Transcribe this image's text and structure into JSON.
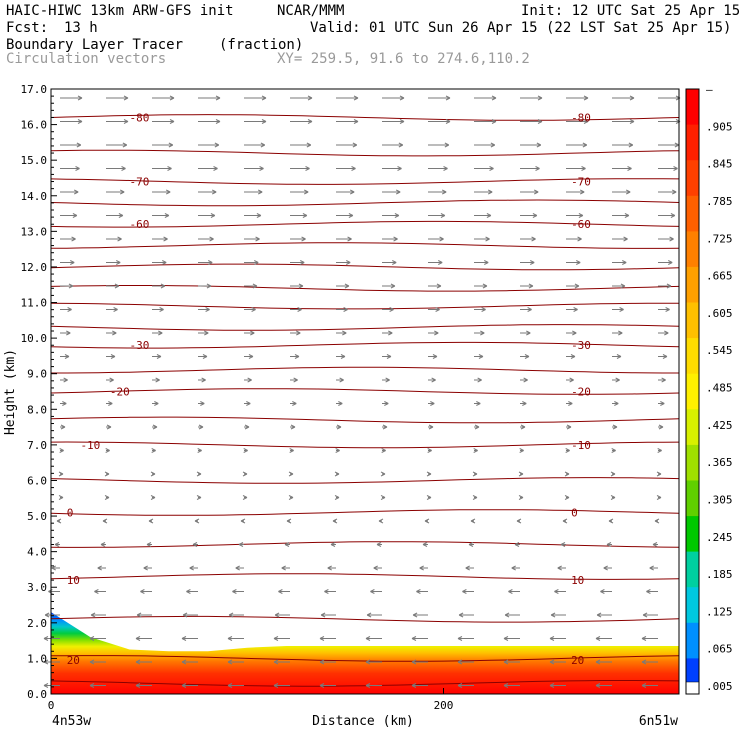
{
  "header": {
    "model": "HAIC-HIWC 13km ARW-GFS init",
    "org": "NCAR/MMM",
    "init": "Init: 12 UTC Sat 25 Apr 15",
    "fcst_label": "Fcst:",
    "fcst_value": "13 h",
    "valid": "Valid: 01 UTC Sun 26 Apr 15 (22 LST Sat 25 Apr 15)",
    "field": "Boundary Layer Tracer",
    "units": "(fraction)",
    "vectors": "Circulation vectors",
    "xy": "XY= 259.5, 91.6 to 274.6,110.2"
  },
  "chart_data": {
    "type": "heatmap",
    "title": "Boundary Layer Tracer",
    "ylabel": "Height (km)",
    "xlabel": "Distance (km)",
    "xlim": [
      0,
      320
    ],
    "ylim": [
      0,
      17
    ],
    "y_ticks": [
      "0.0",
      "1.0",
      "2.0",
      "3.0",
      "4.0",
      "5.0",
      "6.0",
      "7.0",
      "8.0",
      "9.0",
      "10.0",
      "11.0",
      "12.0",
      "13.0",
      "14.0",
      "15.0",
      "16.0",
      "17.0"
    ],
    "x_ticks": [
      {
        "value": 0,
        "label": "0"
      },
      {
        "value": 200,
        "label": "200"
      }
    ],
    "x_end_labels": {
      "left": "4n53w",
      "right": "6n51w"
    },
    "colorbar_labels": [
      "–",
      ".905",
      ".845",
      ".785",
      ".725",
      ".665",
      ".605",
      ".545",
      ".485",
      ".425",
      ".365",
      ".305",
      ".245",
      ".185",
      ".125",
      ".065",
      ".005"
    ],
    "colorbar_colors": [
      "#ff0000",
      "#ff2000",
      "#ff4000",
      "#ff6000",
      "#ff8000",
      "#ffa000",
      "#ffc000",
      "#ffdc00",
      "#fff000",
      "#d8f000",
      "#a0e000",
      "#60d000",
      "#00c800",
      "#00d0a0",
      "#00c8e0",
      "#0090ff",
      "#0040ff"
    ],
    "contour_labels": [
      {
        "text": "-80",
        "height": 16.2,
        "positions": [
          40,
          265
        ]
      },
      {
        "text": "-70",
        "height": 14.4,
        "positions": [
          40,
          265
        ]
      },
      {
        "text": "-60",
        "height": 13.2,
        "positions": [
          40,
          265
        ]
      },
      {
        "text": "-30",
        "height": 9.8,
        "positions": [
          40,
          265
        ]
      },
      {
        "text": "-20",
        "height": 8.5,
        "positions": [
          30,
          265
        ]
      },
      {
        "text": "-10",
        "height": 7.0,
        "positions": [
          15,
          265
        ]
      },
      {
        "text": "0",
        "height": 5.1,
        "positions": [
          8,
          265
        ]
      },
      {
        "text": "10",
        "height": 3.2,
        "positions": [
          8,
          265
        ]
      },
      {
        "text": "20",
        "height": 0.95,
        "positions": [
          8,
          265
        ]
      }
    ],
    "contour_heights": [
      16.2,
      15.2,
      14.4,
      13.8,
      13.2,
      12.6,
      12.0,
      11.4,
      10.9,
      10.3,
      9.8,
      9.1,
      8.5,
      7.7,
      7.0,
      6.0,
      5.1,
      4.2,
      3.3,
      2.1,
      1.0,
      0.3
    ],
    "tracer_top_km": [
      2.3,
      1.6,
      1.25,
      1.2,
      1.2,
      1.3,
      1.35,
      1.35,
      1.35,
      1.35,
      1.35,
      1.35,
      1.35,
      1.35,
      1.35,
      1.35,
      1.35
    ]
  }
}
